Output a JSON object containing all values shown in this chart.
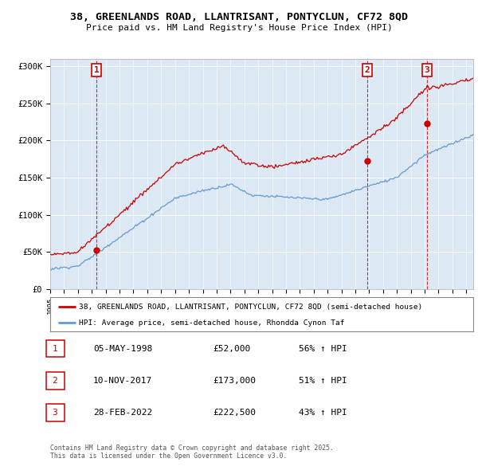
{
  "title_line1": "38, GREENLANDS ROAD, LLANTRISANT, PONTYCLUN, CF72 8QD",
  "title_line2": "Price paid vs. HM Land Registry's House Price Index (HPI)",
  "ylabel_ticks": [
    "£0",
    "£50K",
    "£100K",
    "£150K",
    "£200K",
    "£250K",
    "£300K"
  ],
  "ytick_values": [
    0,
    50000,
    100000,
    150000,
    200000,
    250000,
    300000
  ],
  "ylim": [
    0,
    310000
  ],
  "xlim_start": 1995.0,
  "xlim_end": 2025.5,
  "sale_dates": [
    1998.35,
    2017.86,
    2022.16
  ],
  "sale_prices": [
    52000,
    173000,
    222500
  ],
  "sale_labels": [
    "1",
    "2",
    "3"
  ],
  "legend_line1": "38, GREENLANDS ROAD, LLANTRISANT, PONTYCLUN, CF72 8QD (semi-detached house)",
  "legend_line2": "HPI: Average price, semi-detached house, Rhondda Cynon Taf",
  "table_rows": [
    [
      "1",
      "05-MAY-1998",
      "£52,000",
      "56% ↑ HPI"
    ],
    [
      "2",
      "10-NOV-2017",
      "£173,000",
      "51% ↑ HPI"
    ],
    [
      "3",
      "28-FEB-2022",
      "£222,500",
      "43% ↑ HPI"
    ]
  ],
  "footnote": "Contains HM Land Registry data © Crown copyright and database right 2025.\nThis data is licensed under the Open Government Licence v3.0.",
  "line_color_red": "#cc0000",
  "line_color_blue": "#6699cc",
  "chart_bg_color": "#dce9f5",
  "background_color": "#ffffff",
  "grid_color": "#ffffff"
}
